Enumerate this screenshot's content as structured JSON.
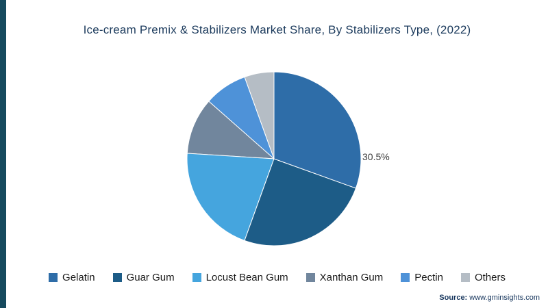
{
  "page": {
    "title": "Ice-cream Premix & Stabilizers Market Share, By Stabilizers Type, (2022)"
  },
  "chart_data": {
    "type": "pie",
    "title": "Ice-cream Premix & Stabilizers Market Share, By Stabilizers Type, (2022)",
    "start_angle_deg": 0,
    "direction": "clockwise",
    "legend_position": "bottom",
    "slices": [
      {
        "label": "Gelatin",
        "value": 30.5,
        "color": "#2E6DA8"
      },
      {
        "label": "Guar Gum",
        "value": 25.0,
        "color": "#1D5C87"
      },
      {
        "label": "Locust Bean Gum",
        "value": 20.5,
        "color": "#45A5DE"
      },
      {
        "label": "Xanthan Gum",
        "value": 10.5,
        "color": "#71869D"
      },
      {
        "label": "Pectin",
        "value": 8.0,
        "color": "#4E92D8"
      },
      {
        "label": "Others",
        "value": 5.5,
        "color": "#B5BDC5"
      }
    ],
    "annotations": [
      {
        "text": "30.5%",
        "slice": "Gelatin"
      }
    ]
  },
  "footer": {
    "source_label": "Source:",
    "source_value": "www.gminsights.com"
  },
  "colors": {
    "accent_bar": "#164A5E",
    "title_text": "#1B3A5C"
  }
}
